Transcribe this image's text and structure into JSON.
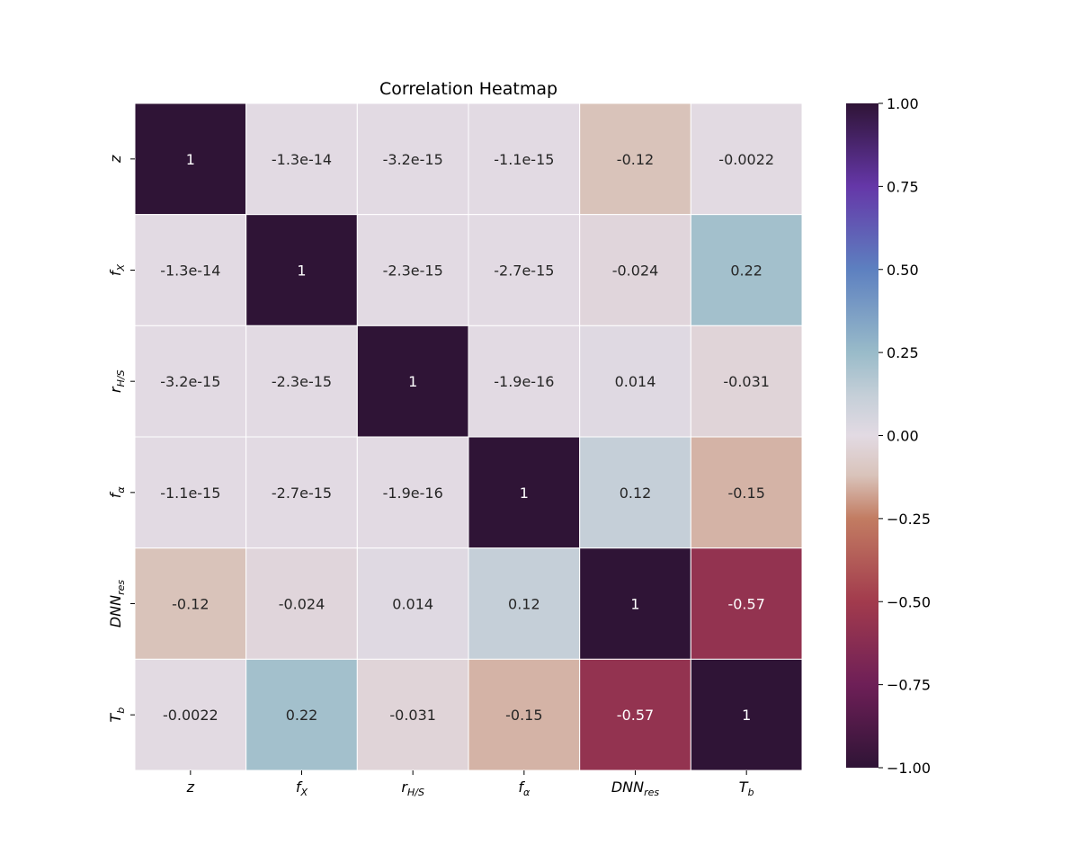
{
  "chart_data": {
    "type": "heatmap",
    "title": "Correlation Heatmap",
    "labels": [
      {
        "base": "z",
        "sub": ""
      },
      {
        "base": "f",
        "sub": "X"
      },
      {
        "base": "r",
        "sub": "H/S"
      },
      {
        "base": "f",
        "sub": "α"
      },
      {
        "base": "DNN",
        "sub": "res"
      },
      {
        "base": "T",
        "sub": "b"
      }
    ],
    "matrix": [
      [
        1,
        -1.3e-14,
        -3.2e-15,
        -1.1e-15,
        -0.12,
        -0.0022
      ],
      [
        -1.3e-14,
        1,
        -2.3e-15,
        -2.7e-15,
        -0.024,
        0.22
      ],
      [
        -3.2e-15,
        -2.3e-15,
        1,
        -1.9e-16,
        0.014,
        -0.031
      ],
      [
        -1.1e-15,
        -2.7e-15,
        -1.9e-16,
        1,
        0.12,
        -0.15
      ],
      [
        -0.12,
        -0.024,
        0.014,
        0.12,
        1,
        -0.57
      ],
      [
        -0.0022,
        0.22,
        -0.031,
        -0.15,
        -0.57,
        1
      ]
    ],
    "annotations": [
      [
        "1",
        "-1.3e-14",
        "-3.2e-15",
        "-1.1e-15",
        "-0.12",
        "-0.0022"
      ],
      [
        "-1.3e-14",
        "1",
        "-2.3e-15",
        "-2.7e-15",
        "-0.024",
        "0.22"
      ],
      [
        "-3.2e-15",
        "-2.3e-15",
        "1",
        "-1.9e-16",
        "0.014",
        "-0.031"
      ],
      [
        "-1.1e-15",
        "-2.7e-15",
        "-1.9e-16",
        "1",
        "0.12",
        "-0.15"
      ],
      [
        "-0.12",
        "-0.024",
        "0.014",
        "0.12",
        "1",
        "-0.57"
      ],
      [
        "-0.0022",
        "0.22",
        "-0.031",
        "-0.15",
        "-0.57",
        "1"
      ]
    ],
    "colorbar": {
      "range": [
        -1.0,
        1.0
      ],
      "ticks": [
        1.0,
        0.75,
        0.5,
        0.25,
        0.0,
        -0.25,
        -0.5,
        -0.75,
        -1.0
      ],
      "tick_labels": [
        "1.00",
        "0.75",
        "0.50",
        "0.25",
        "0.00",
        "−0.25",
        "−0.50",
        "−0.75",
        "−1.00"
      ],
      "colormap": "twilight_shifted",
      "stops": [
        {
          "v": -1.0,
          "color": "#2f1436"
        },
        {
          "v": -0.75,
          "color": "#6e1f57"
        },
        {
          "v": -0.5,
          "color": "#a23b4d"
        },
        {
          "v": -0.25,
          "color": "#c27c62"
        },
        {
          "v": -0.12,
          "color": "#d9c3ba"
        },
        {
          "v": 0.0,
          "color": "#e2dae3"
        },
        {
          "v": 0.12,
          "color": "#c5cfd8"
        },
        {
          "v": 0.25,
          "color": "#99bbc9"
        },
        {
          "v": 0.5,
          "color": "#5d80c0"
        },
        {
          "v": 0.75,
          "color": "#6537a8"
        },
        {
          "v": 1.0,
          "color": "#2f1436"
        }
      ]
    },
    "grid": false
  }
}
